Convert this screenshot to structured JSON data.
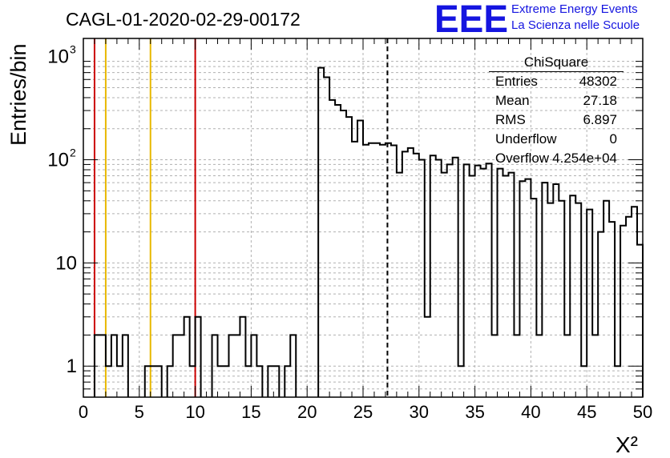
{
  "title": "CAGL-01-2020-02-29-00172",
  "logo": {
    "mark": "EEE",
    "line1": "Extreme Energy Events",
    "line2": "La Scienza nelle Scuole",
    "color": "#1515e0"
  },
  "stats": {
    "name": "ChiSquare",
    "rows": [
      {
        "label": "Entries",
        "value": "48302"
      },
      {
        "label": "Mean",
        "value": "27.18"
      },
      {
        "label": "RMS",
        "value": "6.897"
      },
      {
        "label": "Underflow",
        "value": "0"
      },
      {
        "label": "Overflow",
        "value": "4.254e+04"
      }
    ]
  },
  "chart_data": {
    "type": "histogram",
    "title": "CAGL-01-2020-02-29-00172",
    "xlabel": "X²",
    "ylabel": "Entries/bin",
    "xlim": [
      0,
      50
    ],
    "ylim": [
      0.5,
      1500
    ],
    "yscale": "log",
    "grid": true,
    "bin_width": 0.5,
    "x_ticks": [
      "0",
      "5",
      "10",
      "15",
      "20",
      "25",
      "30",
      "35",
      "40",
      "45",
      "50"
    ],
    "y_ticks": [
      {
        "value": 1,
        "label": "1"
      },
      {
        "value": 10,
        "label": "10"
      },
      {
        "value": 100,
        "label": "10",
        "exponent": "2"
      },
      {
        "value": 1000,
        "label": "10",
        "exponent": "3"
      }
    ],
    "bins": [
      {
        "x": 1.0,
        "y": 2
      },
      {
        "x": 1.5,
        "y": 2
      },
      {
        "x": 2.0,
        "y": 1
      },
      {
        "x": 2.5,
        "y": 2
      },
      {
        "x": 3.0,
        "y": 1
      },
      {
        "x": 3.5,
        "y": 2
      },
      {
        "x": 5.5,
        "y": 1
      },
      {
        "x": 6.0,
        "y": 1
      },
      {
        "x": 6.5,
        "y": 1
      },
      {
        "x": 7.5,
        "y": 1
      },
      {
        "x": 8.0,
        "y": 2
      },
      {
        "x": 8.5,
        "y": 2
      },
      {
        "x": 9.0,
        "y": 3
      },
      {
        "x": 9.5,
        "y": 1
      },
      {
        "x": 10.0,
        "y": 3
      },
      {
        "x": 11.5,
        "y": 2
      },
      {
        "x": 12.0,
        "y": 1
      },
      {
        "x": 12.5,
        "y": 1
      },
      {
        "x": 13.0,
        "y": 2
      },
      {
        "x": 13.5,
        "y": 2
      },
      {
        "x": 14.0,
        "y": 3
      },
      {
        "x": 14.5,
        "y": 1
      },
      {
        "x": 15.0,
        "y": 2
      },
      {
        "x": 15.5,
        "y": 1
      },
      {
        "x": 16.5,
        "y": 1
      },
      {
        "x": 17.0,
        "y": 1
      },
      {
        "x": 18.0,
        "y": 1
      },
      {
        "x": 18.5,
        "y": 2
      },
      {
        "x": 21.0,
        "y": 780
      },
      {
        "x": 21.5,
        "y": 630
      },
      {
        "x": 22.0,
        "y": 380
      },
      {
        "x": 22.5,
        "y": 340
      },
      {
        "x": 23.0,
        "y": 300
      },
      {
        "x": 23.5,
        "y": 260
      },
      {
        "x": 24.0,
        "y": 150
      },
      {
        "x": 24.5,
        "y": 240
      },
      {
        "x": 25.0,
        "y": 140
      },
      {
        "x": 25.5,
        "y": 145
      },
      {
        "x": 26.0,
        "y": 145
      },
      {
        "x": 26.5,
        "y": 140
      },
      {
        "x": 27.0,
        "y": 145
      },
      {
        "x": 27.5,
        "y": 138
      },
      {
        "x": 28.0,
        "y": 75
      },
      {
        "x": 28.5,
        "y": 120
      },
      {
        "x": 29.0,
        "y": 130
      },
      {
        "x": 29.5,
        "y": 115
      },
      {
        "x": 30.0,
        "y": 100
      },
      {
        "x": 30.5,
        "y": 3
      },
      {
        "x": 31.0,
        "y": 110
      },
      {
        "x": 31.5,
        "y": 100
      },
      {
        "x": 32.0,
        "y": 75
      },
      {
        "x": 32.5,
        "y": 90
      },
      {
        "x": 33.0,
        "y": 105
      },
      {
        "x": 33.5,
        "y": 1
      },
      {
        "x": 34.0,
        "y": 90
      },
      {
        "x": 34.5,
        "y": 70
      },
      {
        "x": 35.0,
        "y": 88
      },
      {
        "x": 35.5,
        "y": 82
      },
      {
        "x": 36.0,
        "y": 92
      },
      {
        "x": 36.5,
        "y": 2
      },
      {
        "x": 37.0,
        "y": 82
      },
      {
        "x": 37.5,
        "y": 70
      },
      {
        "x": 38.0,
        "y": 75
      },
      {
        "x": 38.5,
        "y": 2
      },
      {
        "x": 39.0,
        "y": 62
      },
      {
        "x": 39.5,
        "y": 65
      },
      {
        "x": 40.0,
        "y": 42
      },
      {
        "x": 40.5,
        "y": 2
      },
      {
        "x": 41.0,
        "y": 60
      },
      {
        "x": 41.5,
        "y": 38
      },
      {
        "x": 42.0,
        "y": 58
      },
      {
        "x": 42.5,
        "y": 40
      },
      {
        "x": 43.0,
        "y": 2
      },
      {
        "x": 43.5,
        "y": 45
      },
      {
        "x": 44.0,
        "y": 38
      },
      {
        "x": 44.5,
        "y": 1
      },
      {
        "x": 45.0,
        "y": 33
      },
      {
        "x": 45.5,
        "y": 2
      },
      {
        "x": 46.0,
        "y": 20
      },
      {
        "x": 46.5,
        "y": 40
      },
      {
        "x": 47.0,
        "y": 25
      },
      {
        "x": 47.5,
        "y": 1
      },
      {
        "x": 48.0,
        "y": 23
      },
      {
        "x": 48.5,
        "y": 28
      },
      {
        "x": 49.0,
        "y": 35
      },
      {
        "x": 49.5,
        "y": 15
      }
    ],
    "vlines": [
      {
        "x": 1,
        "color": "#cc0000",
        "style": "solid"
      },
      {
        "x": 2,
        "color": "#e8b800",
        "style": "solid"
      },
      {
        "x": 6,
        "color": "#e8b800",
        "style": "solid"
      },
      {
        "x": 10,
        "color": "#cc0000",
        "style": "solid"
      },
      {
        "x": 27.18,
        "color": "#000000",
        "style": "dashed"
      }
    ]
  }
}
